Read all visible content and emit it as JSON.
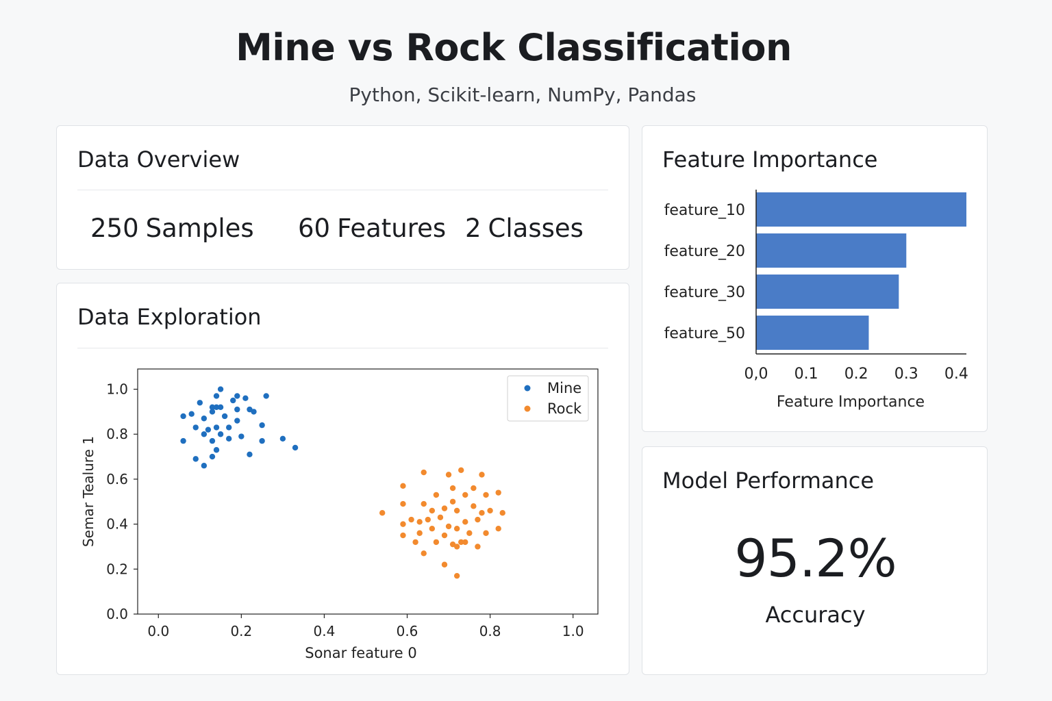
{
  "header": {
    "title": "Mine vs Rock Classification",
    "subtitle": "Python, Scikit-learn, NumPy, Pandas"
  },
  "overview": {
    "title": "Data Overview",
    "stats": [
      {
        "value": "250",
        "label": "Samples"
      },
      {
        "value": "60",
        "label": "Features"
      },
      {
        "value": "2",
        "label": "Classes"
      }
    ]
  },
  "exploration": {
    "title": "Data Exploration"
  },
  "importance": {
    "title": "Feature Importance"
  },
  "performance": {
    "title": "Model Performance",
    "value": "95.2%",
    "label": "Accuracy"
  },
  "colors": {
    "mine": "#1f6fbf",
    "rock": "#f28a2e",
    "bar": "#4a7cc7"
  },
  "chart_data": [
    {
      "type": "scatter",
      "title": "",
      "xlabel": "Sonar feature 0",
      "ylabel": "Semar Tealure 1",
      "xlim": [
        -0.05,
        1.06
      ],
      "ylim": [
        0.0,
        1.09
      ],
      "xticks": [
        "0.0",
        "0.2",
        "0.4",
        "0.6",
        "0.8",
        "1.0"
      ],
      "yticks": [
        "0.0",
        "0.2",
        "0.4",
        "0.6",
        "0.8",
        "1.0"
      ],
      "legend_position": "top-right",
      "series": [
        {
          "name": "Mine",
          "color": "#1f6fbf",
          "points": [
            [
              0.06,
              0.88
            ],
            [
              0.08,
              0.89
            ],
            [
              0.1,
              0.94
            ],
            [
              0.13,
              0.92
            ],
            [
              0.14,
              0.97
            ],
            [
              0.15,
              1.0
            ],
            [
              0.19,
              0.97
            ],
            [
              0.21,
              0.96
            ],
            [
              0.18,
              0.95
            ],
            [
              0.26,
              0.97
            ],
            [
              0.14,
              0.92
            ],
            [
              0.15,
              0.92
            ],
            [
              0.13,
              0.9
            ],
            [
              0.19,
              0.91
            ],
            [
              0.22,
              0.91
            ],
            [
              0.23,
              0.9
            ],
            [
              0.11,
              0.87
            ],
            [
              0.16,
              0.88
            ],
            [
              0.19,
              0.86
            ],
            [
              0.09,
              0.83
            ],
            [
              0.12,
              0.82
            ],
            [
              0.14,
              0.83
            ],
            [
              0.17,
              0.83
            ],
            [
              0.25,
              0.84
            ],
            [
              0.11,
              0.8
            ],
            [
              0.15,
              0.8
            ],
            [
              0.2,
              0.79
            ],
            [
              0.06,
              0.77
            ],
            [
              0.13,
              0.77
            ],
            [
              0.17,
              0.78
            ],
            [
              0.25,
              0.77
            ],
            [
              0.14,
              0.73
            ],
            [
              0.3,
              0.78
            ],
            [
              0.33,
              0.74
            ],
            [
              0.22,
              0.71
            ],
            [
              0.13,
              0.7
            ],
            [
              0.09,
              0.69
            ],
            [
              0.11,
              0.66
            ]
          ]
        },
        {
          "name": "Rock",
          "color": "#f28a2e",
          "points": [
            [
              0.64,
              0.63
            ],
            [
              0.7,
              0.62
            ],
            [
              0.73,
              0.64
            ],
            [
              0.78,
              0.62
            ],
            [
              0.59,
              0.57
            ],
            [
              0.71,
              0.56
            ],
            [
              0.76,
              0.56
            ],
            [
              0.67,
              0.53
            ],
            [
              0.74,
              0.53
            ],
            [
              0.79,
              0.53
            ],
            [
              0.82,
              0.54
            ],
            [
              0.59,
              0.49
            ],
            [
              0.64,
              0.49
            ],
            [
              0.71,
              0.5
            ],
            [
              0.76,
              0.48
            ],
            [
              0.54,
              0.45
            ],
            [
              0.69,
              0.47
            ],
            [
              0.66,
              0.46
            ],
            [
              0.72,
              0.46
            ],
            [
              0.78,
              0.45
            ],
            [
              0.8,
              0.46
            ],
            [
              0.83,
              0.45
            ],
            [
              0.61,
              0.42
            ],
            [
              0.65,
              0.42
            ],
            [
              0.68,
              0.43
            ],
            [
              0.59,
              0.4
            ],
            [
              0.63,
              0.41
            ],
            [
              0.7,
              0.39
            ],
            [
              0.74,
              0.41
            ],
            [
              0.77,
              0.42
            ],
            [
              0.66,
              0.38
            ],
            [
              0.72,
              0.38
            ],
            [
              0.79,
              0.36
            ],
            [
              0.82,
              0.38
            ],
            [
              0.59,
              0.35
            ],
            [
              0.63,
              0.36
            ],
            [
              0.69,
              0.35
            ],
            [
              0.75,
              0.36
            ],
            [
              0.62,
              0.32
            ],
            [
              0.67,
              0.32
            ],
            [
              0.71,
              0.31
            ],
            [
              0.73,
              0.32
            ],
            [
              0.74,
              0.32
            ],
            [
              0.77,
              0.3
            ],
            [
              0.72,
              0.3
            ],
            [
              0.64,
              0.27
            ],
            [
              0.69,
              0.22
            ],
            [
              0.72,
              0.17
            ]
          ]
        }
      ]
    },
    {
      "type": "bar",
      "orientation": "horizontal",
      "title": "",
      "xlabel": "Feature Importance",
      "ylabel": "",
      "xlim": [
        0,
        0.42
      ],
      "xticks": [
        "0,0",
        "0.1",
        "0.2",
        "0.3",
        "0.4"
      ],
      "categories": [
        "feature_10",
        "feature_20",
        "feature_30",
        "feature_50"
      ],
      "values": [
        0.42,
        0.3,
        0.285,
        0.225
      ],
      "color": "#4a7cc7"
    }
  ]
}
